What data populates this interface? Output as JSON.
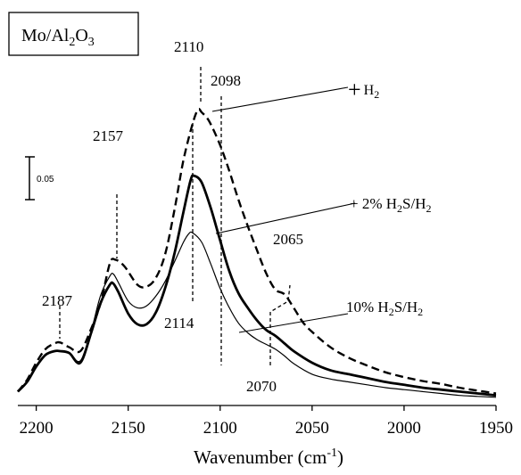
{
  "chart_data": {
    "type": "line",
    "title": "Mo/Al2O3",
    "title_parts": {
      "a": "Mo/Al",
      "s1": "2",
      "b": "O",
      "s2": "3"
    },
    "xlabel": "Wavenumber (cm-1)",
    "xlabel_parts": {
      "main": "Wavenumber (cm",
      "sup": "-1",
      "end": ")"
    },
    "ylabel": "",
    "xlim": [
      2210,
      1950
    ],
    "x_reversed": true,
    "xticks": [
      "2200",
      "2150",
      "2100",
      "2050",
      "2000",
      "1950"
    ],
    "xtick_values": [
      2200,
      2150,
      2100,
      2050,
      2000,
      1950
    ],
    "scale_bar_label": "0.05",
    "grid": false,
    "series": [
      {
        "id": "h2",
        "label": "+ H2",
        "style": "dashed",
        "x": [
          2210,
          2205,
          2200,
          2195,
          2190,
          2187,
          2182,
          2176,
          2170,
          2165,
          2160,
          2157,
          2152,
          2145,
          2140,
          2135,
          2130,
          2125,
          2120,
          2115,
          2112,
          2110,
          2106,
          2100,
          2095,
          2090,
          2085,
          2080,
          2075,
          2070,
          2065,
          2060,
          2055,
          2050,
          2040,
          2030,
          2020,
          2010,
          2000,
          1990,
          1980,
          1970,
          1960,
          1950
        ],
        "y": [
          0.008,
          0.02,
          0.038,
          0.052,
          0.058,
          0.059,
          0.054,
          0.05,
          0.074,
          0.1,
          0.141,
          0.145,
          0.138,
          0.119,
          0.117,
          0.126,
          0.15,
          0.195,
          0.248,
          0.286,
          0.301,
          0.298,
          0.289,
          0.264,
          0.237,
          0.207,
          0.18,
          0.155,
          0.131,
          0.114,
          0.109,
          0.095,
          0.08,
          0.07,
          0.054,
          0.043,
          0.035,
          0.028,
          0.023,
          0.019,
          0.016,
          0.012,
          0.009,
          0.006
        ]
      },
      {
        "id": "h2s2",
        "label": "+ 2% H2S/H2",
        "style": "thick",
        "x": [
          2210,
          2205,
          2200,
          2195,
          2190,
          2187,
          2182,
          2176,
          2170,
          2165,
          2160,
          2158,
          2155,
          2150,
          2145,
          2140,
          2135,
          2130,
          2125,
          2120,
          2116,
          2114,
          2110,
          2105,
          2100,
          2095,
          2090,
          2085,
          2080,
          2075,
          2070,
          2065,
          2060,
          2050,
          2040,
          2030,
          2020,
          2010,
          2000,
          1990,
          1980,
          1970,
          1960,
          1950
        ],
        "y": [
          0.008,
          0.018,
          0.034,
          0.046,
          0.05,
          0.05,
          0.048,
          0.038,
          0.07,
          0.1,
          0.119,
          0.12,
          0.11,
          0.089,
          0.078,
          0.078,
          0.09,
          0.115,
          0.15,
          0.194,
          0.228,
          0.232,
          0.225,
          0.198,
          0.165,
          0.133,
          0.11,
          0.095,
          0.082,
          0.072,
          0.066,
          0.058,
          0.05,
          0.038,
          0.03,
          0.026,
          0.022,
          0.018,
          0.015,
          0.012,
          0.01,
          0.008,
          0.006,
          0.004
        ]
      },
      {
        "id": "h2s10",
        "label": "10% H2S/H2",
        "style": "thin",
        "x": [
          2210,
          2205,
          2200,
          2195,
          2190,
          2187,
          2182,
          2176,
          2170,
          2165,
          2160,
          2158,
          2155,
          2150,
          2145,
          2140,
          2135,
          2130,
          2125,
          2120,
          2117,
          2115,
          2110,
          2105,
          2100,
          2095,
          2090,
          2085,
          2080,
          2075,
          2070,
          2065,
          2060,
          2050,
          2040,
          2030,
          2020,
          2010,
          2000,
          1990,
          1980,
          1970,
          1960,
          1950
        ],
        "y": [
          0.008,
          0.018,
          0.034,
          0.046,
          0.05,
          0.05,
          0.048,
          0.04,
          0.072,
          0.108,
          0.128,
          0.13,
          0.12,
          0.102,
          0.095,
          0.097,
          0.107,
          0.122,
          0.142,
          0.163,
          0.172,
          0.173,
          0.163,
          0.14,
          0.115,
          0.095,
          0.079,
          0.069,
          0.062,
          0.057,
          0.052,
          0.045,
          0.037,
          0.026,
          0.021,
          0.018,
          0.015,
          0.012,
          0.01,
          0.008,
          0.006,
          0.004,
          0.003,
          0.002
        ]
      }
    ],
    "peak_labels": [
      "2187",
      "2157",
      "2110",
      "2098",
      "2114",
      "2065",
      "2070"
    ],
    "series_labels": {
      "h2": {
        "prefix": "+",
        "main": "H",
        "sub": "2"
      },
      "h2s2": {
        "a": "+ 2% H",
        "s1": "2",
        "b": "S/H",
        "s2": "2"
      },
      "h2s10": {
        "a": "10% H",
        "s1": "2",
        "b": "S/H",
        "s2": "2"
      }
    }
  }
}
